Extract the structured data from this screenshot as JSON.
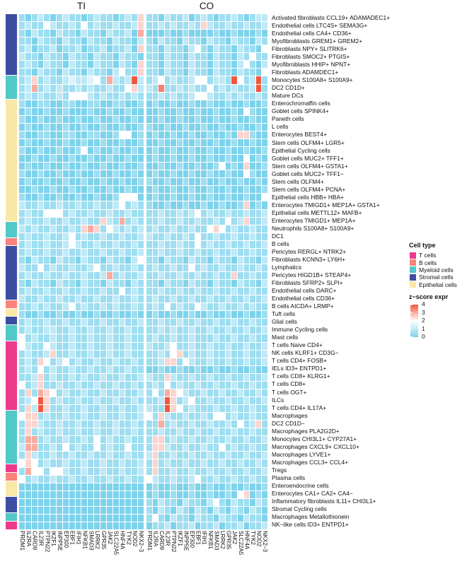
{
  "chart_data": {
    "type": "heatmap",
    "panel_titles": [
      "TI",
      "CO"
    ],
    "x_labels": [
      "PRDM1",
      "IL2RA",
      "CARD9",
      "IL23R",
      "PTPN22",
      "IKZF1",
      "INPP5E",
      "EP300",
      "EBF1",
      "IFIH1",
      "NFKB1",
      "SMAD3",
      "LRRK2",
      "GPR35",
      "JAK2",
      "SLC22A5",
      "HNF4A",
      "TYK2",
      "NOD2",
      "NKX2−3"
    ],
    "value_encoding": "each character c of ti/co strings is one cell, z-score = digit × 0.5 (0 → 0.0 … 8 → 4.0), columns ordered as x_labels",
    "colorscale": {
      "v0": "#7ED3EC",
      "v2": "#FFFFFF",
      "v4": "#F2573E"
    },
    "grid_line_color": "#FFFFFF",
    "rows": [
      {
        "label": "Activated fibroblasts CCL19+ ADAMADEC1+",
        "cat": "S",
        "ti": "10121012110121101215",
        "co": "11021120121011210122"
      },
      {
        "label": "Endothelial cells LTC4S+ SEMA3G+",
        "cat": "S",
        "ti": "12114211214121121125",
        "co": "11212112152112112112"
      },
      {
        "label": "Endothelial cells CA4+ CD36+",
        "cat": "S",
        "ti": "10211021102110211206",
        "co": "00010010000100100010"
      },
      {
        "label": "Myofibroblasts GREM1+ GREM2+",
        "cat": "S",
        "ti": "11021102110211021102",
        "co": "10211021102110211021"
      },
      {
        "label": "Fibroblasts NPY+ SLITRK6+",
        "cat": "S",
        "ti": "12011201120112011205",
        "co": "11021102410211021104"
      },
      {
        "label": "Fibroblasts SMOC2+ PTGIS+",
        "cat": "S",
        "ti": "21102110211021102110",
        "co": "11021102110211021411"
      },
      {
        "label": "Myofibroblasts HHIP+ NPNT+",
        "cat": "S",
        "ti": "12102110211021102105",
        "co": "11021102110211024102"
      },
      {
        "label": "Fibroblasts ADAMDEC1+",
        "cat": "S",
        "ti": "11021102110211024115",
        "co": "11021102110211021104"
      },
      {
        "label": "Monocytes S100A8+ S100A9+",
        "cat": "M",
        "ti": "12512112322341621282",
        "co": "12412112441221841281"
      },
      {
        "label": "DC2 CD1D+",
        "cat": "M",
        "ti": "12612121121211211452",
        "co": "21711212114121211281"
      },
      {
        "label": "Mature DCs",
        "cat": "M",
        "ti": "12121121444212112121",
        "co": "11212112442112121121"
      },
      {
        "label": "Enterochromaffin cells",
        "cat": "E",
        "ti": "10011001100110011001",
        "co": "01001001001001001001"
      },
      {
        "label": "Goblet cells SPINK4+",
        "cat": "E",
        "ti": "01001001000100100100",
        "co": "00100100100100104100"
      },
      {
        "label": "Paneth cells",
        "cat": "E",
        "ti": "10010010010010010010",
        "co": "00100100100100100100"
      },
      {
        "label": "L cells",
        "cat": "E",
        "ti": "01001001001001001001",
        "co": "10010010010010010010"
      },
      {
        "label": "Enterocytes BEST4+",
        "cat": "E",
        "ti": "10011001100110014401",
        "co": "01001001001001055100"
      },
      {
        "label": "Stem cells OLFM4+ LGR5+",
        "cat": "E",
        "ti": "01001001001001001001",
        "co": "00100100100100100100"
      },
      {
        "label": "Epithelial Cycling cells",
        "cat": "E",
        "ti": "10010010014010010010",
        "co": "01001001001001001001"
      },
      {
        "label": "Goblet cells MUC2+ TFF1+",
        "cat": "E",
        "ti": "00100100100100100100",
        "co": "01001001001001004010"
      },
      {
        "label": "Stem cells OLFM4+ GSTA1+",
        "cat": "E",
        "ti": "01001001001001001001",
        "co": "00100100100140105001"
      },
      {
        "label": "Goblet cells MUC2+ TFF1−",
        "cat": "E",
        "ti": "10010010010010010010",
        "co": "01001001001001004100"
      },
      {
        "label": "Stem cells OLFM4+",
        "cat": "E",
        "ti": "01001001001001001001",
        "co": "10010010010010010010"
      },
      {
        "label": "Stem cells OLFM4+ PCNA+",
        "cat": "E",
        "ti": "00100100100100100100",
        "co": "01001001001001001001"
      },
      {
        "label": "Epithelial cells HBB+ HBA+",
        "cat": "E",
        "ti": "10010010010010014440",
        "co": "01001001001001001004"
      },
      {
        "label": "Enterocytes TMIGD1+ MEP1A+ GSTA1+",
        "cat": "E",
        "ti": "21121121121121124121",
        "co": "10010010010010015010"
      },
      {
        "label": "Epithelial cells METTL12+ MAFB+",
        "cat": "E",
        "ti": "12114441211211211211",
        "co": "11211212412112112112"
      },
      {
        "label": "Enterocytes TMIGD1+ MEP1A+",
        "cat": "E",
        "ti": "12112112112115216121",
        "co": "11211211211214125112"
      },
      {
        "label": "Neutrophils S100A8+ S100A9+",
        "cat": "M",
        "ti": "21211211215651421212",
        "co": "12112112114541211211"
      },
      {
        "label": "DC1",
        "cat": "M",
        "ti": "12112112412112112112",
        "co": "21121121411211211211"
      },
      {
        "label": "B cells",
        "cat": "B",
        "ti": "12112112421121121121",
        "co": "11211211412112112112"
      },
      {
        "label": "Pericytes RERGL+ NTRK2+",
        "cat": "S",
        "ti": "12112112112112112112",
        "co": "11211211211211211211"
      },
      {
        "label": "Fibroblasts KCNN3+ LY6H+",
        "cat": "S",
        "ti": "10211021102110211024",
        "co": "11021102110211021102"
      },
      {
        "label": "Lymphatics",
        "cat": "S",
        "ti": "21141211211241121121",
        "co": "12112114121121121121"
      },
      {
        "label": "Pericytes HIGD1B+ STEAP4+",
        "cat": "S",
        "ti": "12112112112112612112",
        "co": "11211211211211511211"
      },
      {
        "label": "Fibroblasts SFRP2+ SLPI+",
        "cat": "S",
        "ti": "10211021102110211021",
        "co": "11021102110211021102"
      },
      {
        "label": "Endothelial cells DARC+",
        "cat": "S",
        "ti": "12112112112112114121",
        "co": "11211211211211211211"
      },
      {
        "label": "Endothelial cells CD36+",
        "cat": "S",
        "ti": "21121121121121121121",
        "co": "12112112112112112112"
      },
      {
        "label": "B cells AICDA+ LRMP+",
        "cat": "B",
        "ti": "11212112412112121121",
        "co": "12141211421121121211"
      },
      {
        "label": "Tuft cells",
        "cat": "E",
        "ti": "10010010010010010010",
        "co": "01001001001001001001"
      },
      {
        "label": "Glial cells",
        "cat": "S",
        "ti": "12112112112112112112",
        "co": "11211211211211211211"
      },
      {
        "label": "Immune Cycling cells",
        "cat": "M",
        "ti": "12112211211211211211",
        "co": "11212112112112112112"
      },
      {
        "label": "Mast cells",
        "cat": "M",
        "ti": "41211211211211211211",
        "co": "12112112111211211211"
      },
      {
        "label": "T cells Naive CD4+",
        "cat": "T",
        "ti": "42114211211211211211",
        "co": "21124112112112112112"
      },
      {
        "label": "NK cells KLRF1+ CD3G−",
        "cat": "T",
        "ti": "12112511211211211211",
        "co": "11214512112112112112"
      },
      {
        "label": "T cells CD4+ FOSB+",
        "cat": "T",
        "ti": "12154124121121121121",
        "co": "11255142112112112112"
      },
      {
        "label": "IELs ID3+ ENTPD1+",
        "cat": "T",
        "ti": "12141211211211211211",
        "co": "00100100100100100100"
      },
      {
        "label": "T cells CD8+ KLRG1+",
        "cat": "T",
        "ti": "11251211212112112112",
        "co": "21152112112112112112"
      },
      {
        "label": "T cells CD8+",
        "cat": "T",
        "ti": "41251121121121121121",
        "co": "12141211211211211211"
      },
      {
        "label": "T cells OGT+",
        "cat": "T",
        "ti": "15165412112112112112",
        "co": "14165421121121121121"
      },
      {
        "label": "ILCs",
        "cat": "T",
        "ti": "12485121121121121121",
        "co": "11285124112112112112"
      },
      {
        "label": "T cells CD4+ IL17A+",
        "cat": "T",
        "ti": "15285112112112112112",
        "co": "21185412111211211211"
      },
      {
        "label": "Macrophages",
        "cat": "M",
        "ti": "45512112112112112112",
        "co": "41521121121441211211"
      },
      {
        "label": "DC2 CD1D−",
        "cat": "M",
        "ti": "15521121121121121121",
        "co": "11612112112112141251"
      },
      {
        "label": "Macrophages PLA2G2D+",
        "cat": "M",
        "ti": "15121121121121121121",
        "co": "11211211211211211211"
      },
      {
        "label": "Monocytes CHI3L1+ CYP27A1+",
        "cat": "M",
        "ti": "16612112112141211211",
        "co": "15512112112112112112"
      },
      {
        "label": "Macrophages CXCL9+ CXCL10+",
        "cat": "M",
        "ti": "26611214121141211411",
        "co": "15521121121141211211"
      },
      {
        "label": "Macrophages LYVE1+",
        "cat": "M",
        "ti": "15211211211211211211",
        "co": "25112112112112112112"
      },
      {
        "label": "Macrophages CCL3+ CCL4+",
        "cat": "M",
        "ti": "45412112112112112112",
        "co": "15121121121121121121"
      },
      {
        "label": "Tregs",
        "cat": "T",
        "ti": "16441442112112112112",
        "co": "15112112112112112112"
      },
      {
        "label": "Plasma cells",
        "cat": "B",
        "ti": "41211211211211211211",
        "co": "42112112411211211211"
      },
      {
        "label": "Enteroendocrine cells",
        "cat": "E",
        "ti": "00000000000000000000",
        "co": "01001001001001001001"
      },
      {
        "label": "Enterocytes CA1+ CA2+ CA4−",
        "cat": "E",
        "ti": "00000000000000000000",
        "co": "01001001001001045010"
      },
      {
        "label": "Inflammatory fibroblasts IL11+ CHI3L1+",
        "cat": "S",
        "ti": "00000000000000000000",
        "co": "10211021102410211021"
      },
      {
        "label": "Stromal Cycling cells",
        "cat": "S",
        "ti": "00000000000000000000",
        "co": "10210210210210210210"
      },
      {
        "label": "Macrophages Metallothionein",
        "cat": "M",
        "ti": "00000000000000000000",
        "co": "14102110211021102110"
      },
      {
        "label": "NK−like cells ID3+ ENTPD1+",
        "cat": "T",
        "ti": "00000000000000000000",
        "co": "01120112011201120112"
      }
    ],
    "legend": {
      "cell_type_title": "Cell type",
      "cell_types": [
        {
          "code": "T",
          "label": "T cells",
          "color": "#EE3A8C"
        },
        {
          "code": "B",
          "label": "B cells",
          "color": "#F9837B"
        },
        {
          "code": "M",
          "label": "Myeloid cells",
          "color": "#52C8C8"
        },
        {
          "code": "S",
          "label": "Stromal cells",
          "color": "#3C4EA2"
        },
        {
          "code": "E",
          "label": "Epithelial cells",
          "color": "#FAE8A6"
        }
      ],
      "zscore_title": "z−score expr",
      "zscore_ticks": [
        "4",
        "3",
        "2",
        "1",
        "0"
      ]
    }
  }
}
